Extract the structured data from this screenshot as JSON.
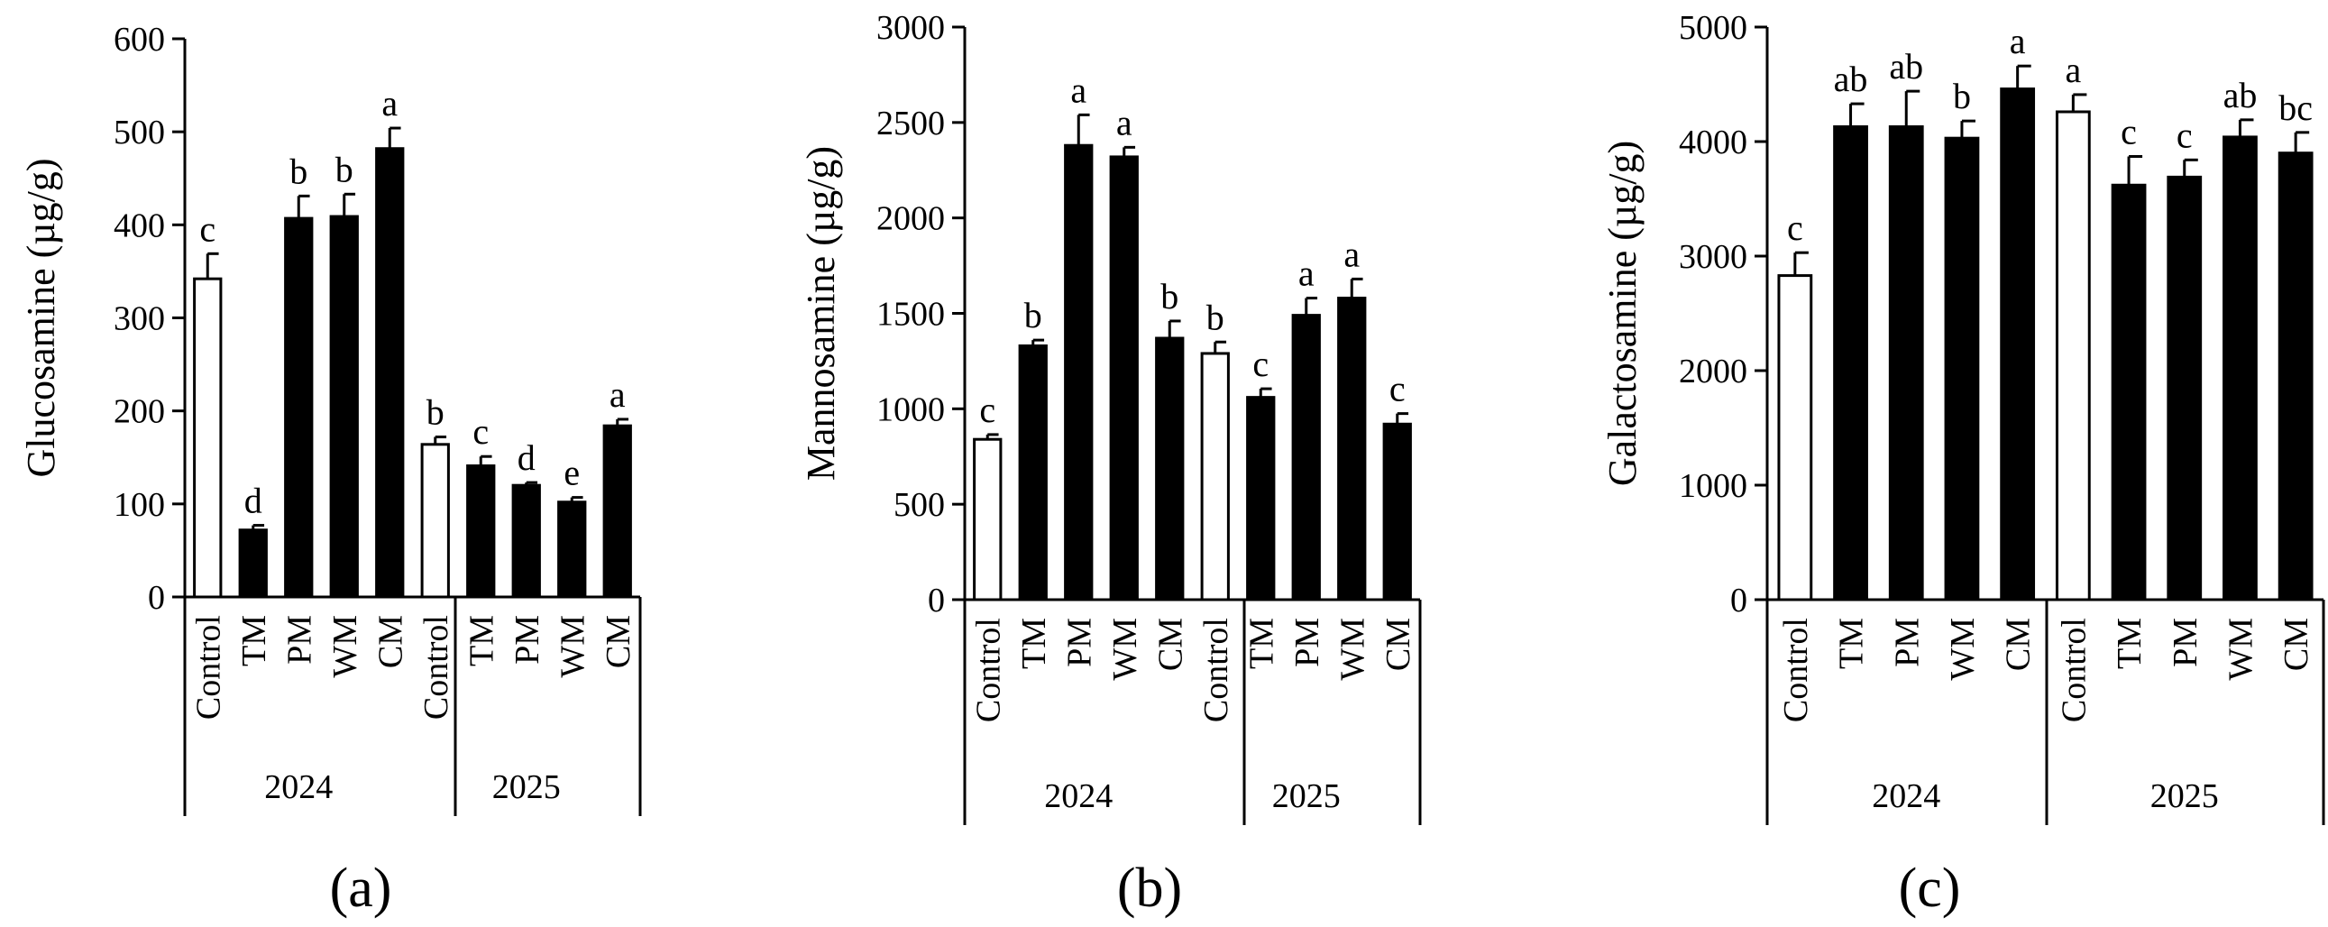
{
  "chart_data": [
    {
      "type": "bar",
      "panel_label": "(a)",
      "ylabel": "Glucosamine (µg/g)",
      "ylim": [
        0,
        600
      ],
      "yticks": [
        0,
        100,
        200,
        300,
        400,
        500,
        600
      ],
      "groups": [
        {
          "year": "2024",
          "categories": [
            "Control",
            "TM",
            "PM",
            "WM",
            "CM"
          ],
          "values": [
            342,
            72,
            407,
            409,
            482
          ],
          "errors": [
            27,
            5,
            24,
            24,
            22
          ],
          "letters": [
            "c",
            "d",
            "b",
            "b",
            "a"
          ]
        },
        {
          "year": "2025",
          "categories": [
            "Control",
            "TM",
            "PM",
            "WM",
            "CM"
          ],
          "values": [
            164,
            141,
            120,
            102,
            184
          ],
          "errors": [
            8,
            10,
            3,
            5,
            7
          ],
          "letters": [
            "b",
            "c",
            "d",
            "e",
            "a"
          ]
        }
      ],
      "fill_colors": {
        "control": "#ffffff",
        "treatment": "#000000"
      }
    },
    {
      "type": "bar",
      "panel_label": "(b)",
      "ylabel": "Mannosamine (µg/g)",
      "ylim": [
        0,
        3000
      ],
      "yticks": [
        0,
        500,
        1000,
        1500,
        2000,
        2500,
        3000
      ],
      "groups": [
        {
          "year": "2024",
          "categories": [
            "Control",
            "TM",
            "PM",
            "WM",
            "CM"
          ],
          "values": [
            840,
            1330,
            2380,
            2320,
            1370
          ],
          "errors": [
            25,
            30,
            160,
            50,
            90
          ],
          "letters": [
            "c",
            "b",
            "a",
            "a",
            "b"
          ]
        },
        {
          "year": "2025",
          "categories": [
            "Control",
            "TM",
            "PM",
            "WM",
            "CM"
          ],
          "values": [
            1290,
            1060,
            1490,
            1580,
            920
          ],
          "errors": [
            60,
            45,
            90,
            100,
            55
          ],
          "letters": [
            "b",
            "c",
            "a",
            "a",
            "c"
          ]
        }
      ],
      "fill_colors": {
        "control": "#ffffff",
        "treatment": "#000000"
      }
    },
    {
      "type": "bar",
      "panel_label": "(c)",
      "ylabel": "Galactosamine (µg/g)",
      "ylim": [
        0,
        5000
      ],
      "yticks": [
        0,
        1000,
        2000,
        3000,
        4000,
        5000
      ],
      "groups": [
        {
          "year": "2024",
          "categories": [
            "Control",
            "TM",
            "PM",
            "WM",
            "CM"
          ],
          "values": [
            2830,
            4130,
            4130,
            4030,
            4460
          ],
          "errors": [
            200,
            200,
            310,
            150,
            200
          ],
          "letters": [
            "c",
            "ab",
            "ab",
            "b",
            "a"
          ]
        },
        {
          "year": "2025",
          "categories": [
            "Control",
            "TM",
            "PM",
            "WM",
            "CM"
          ],
          "values": [
            4260,
            3620,
            3690,
            4040,
            3900
          ],
          "errors": [
            150,
            250,
            150,
            150,
            180
          ],
          "letters": [
            "a",
            "c",
            "c",
            "ab",
            "bc"
          ]
        }
      ],
      "fill_colors": {
        "control": "#ffffff",
        "treatment": "#000000"
      }
    }
  ]
}
